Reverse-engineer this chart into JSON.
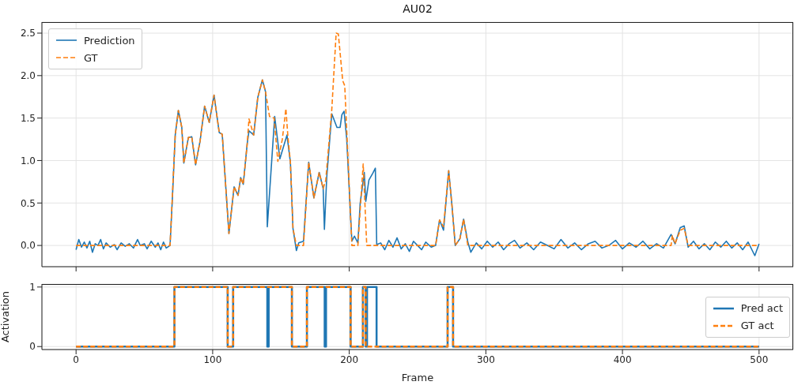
{
  "chart_data": [
    {
      "type": "line",
      "title": "AU02",
      "xlim": [
        -25,
        525
      ],
      "xticks": [
        0,
        100,
        200,
        300,
        400,
        500
      ],
      "ylim": [
        -0.25,
        2.63
      ],
      "yticks": [
        {
          "value": 0,
          "label": "0.0"
        },
        0.5,
        {
          "value": 1,
          "label": "1.0"
        },
        1.5,
        {
          "value": 2,
          "label": "2.0"
        },
        2.5
      ],
      "grid": true,
      "legend": "top left",
      "tick_labels": "y",
      "series": [
        {
          "name": "Prediction",
          "color": "#1f77b4",
          "line_style": "solid",
          "x": [
            0,
            2,
            4,
            6,
            8,
            10,
            12,
            14,
            16,
            18,
            20,
            22,
            25,
            28,
            30,
            33,
            36,
            39,
            42,
            45,
            47,
            50,
            52,
            55,
            58,
            60,
            62,
            64,
            66,
            68.8,
            70.5,
            72.6,
            74.9,
            77.4,
            78.9,
            82.2,
            84.7,
            87.5,
            90.8,
            94.1,
            97.5,
            101,
            104.8,
            107,
            111.9,
            115.7,
            118.6,
            120.5,
            122.4,
            125.3,
            126.6,
            130,
            133,
            136.4,
            138.7,
            140,
            145.4,
            149.2,
            154.4,
            156.9,
            158.8,
            161.3,
            163,
            166.5,
            170.3,
            174.1,
            178,
            180.9,
            181.8,
            183.5,
            187.2,
            191,
            193.3,
            194.6,
            196.2,
            198.1,
            201.9,
            203.8,
            206.3,
            208,
            211,
            212.1,
            214.4,
            217.2,
            219.1,
            220.1,
            223,
            226,
            229,
            232,
            235,
            238,
            241,
            244,
            247,
            250,
            253,
            256,
            260,
            263.2,
            266.1,
            269,
            272.8,
            275.3,
            277.6,
            281,
            283.7,
            286.8,
            289,
            293,
            297,
            301,
            305,
            309,
            313,
            317,
            321,
            325,
            330,
            335,
            340,
            345,
            350,
            355,
            360,
            365,
            370,
            375,
            380,
            385,
            390,
            395,
            400,
            405,
            410,
            415,
            420,
            425,
            430,
            435.6,
            438.5,
            442.3,
            445.2,
            448.1,
            452,
            456,
            460,
            464,
            468,
            472,
            476,
            480,
            484,
            488,
            492,
            496.9,
            500
          ],
          "values": [
            -0.05,
            0.07,
            -0.02,
            0.04,
            -0.03,
            0.05,
            -0.08,
            0.02,
            0.0,
            0.07,
            -0.04,
            0.03,
            -0.02,
            0.01,
            -0.05,
            0.03,
            -0.01,
            0.02,
            -0.03,
            0.07,
            0.0,
            0.02,
            -0.04,
            0.05,
            -0.02,
            0.03,
            -0.05,
            0.04,
            -0.03,
            0.0,
            0.55,
            1.3,
            1.59,
            1.39,
            0.97,
            1.27,
            1.28,
            0.95,
            1.23,
            1.64,
            1.45,
            1.77,
            1.33,
            1.31,
            0.14,
            0.69,
            0.59,
            0.8,
            0.72,
            1.2,
            1.35,
            1.3,
            1.74,
            1.95,
            1.81,
            0.22,
            1.52,
            1.02,
            1.3,
            0.98,
            0.2,
            -0.06,
            0.03,
            0.05,
            0.98,
            0.56,
            0.86,
            0.67,
            0.19,
            0.8,
            1.55,
            1.39,
            1.39,
            1.54,
            1.58,
            1.26,
            0.05,
            0.11,
            0.03,
            0.5,
            0.86,
            0.52,
            0.77,
            0.85,
            0.91,
            0.01,
            0.03,
            -0.05,
            0.06,
            -0.02,
            0.09,
            -0.04,
            0.02,
            -0.07,
            0.05,
            0.0,
            -0.05,
            0.04,
            -0.02,
            0.0,
            0.3,
            0.18,
            0.88,
            0.45,
            0.0,
            0.08,
            0.31,
            0.04,
            -0.08,
            0.03,
            -0.04,
            0.05,
            -0.02,
            0.04,
            -0.05,
            0.02,
            0.06,
            -0.03,
            0.03,
            -0.05,
            0.04,
            0.0,
            -0.04,
            0.07,
            -0.03,
            0.03,
            -0.05,
            0.02,
            0.05,
            -0.03,
            0.0,
            0.06,
            -0.04,
            0.03,
            -0.02,
            0.05,
            -0.04,
            0.02,
            -0.03,
            0.13,
            0.02,
            0.21,
            0.23,
            -0.02,
            0.05,
            -0.04,
            0.02,
            -0.05,
            0.04,
            -0.02,
            0.05,
            -0.03,
            0.03,
            -0.05,
            0.04,
            -0.12,
            0.02
          ]
        },
        {
          "name": "GT",
          "color": "#ff7f0e",
          "line_style": "dashed",
          "x": [
            0,
            68.8,
            72.6,
            74.9,
            77.4,
            78.9,
            82.2,
            84.7,
            87.5,
            90.8,
            94.1,
            97.5,
            101,
            104.8,
            107,
            111.9,
            115.7,
            118.6,
            120.5,
            122.4,
            125.3,
            126.6,
            130,
            133,
            136.4,
            138.7,
            141.6,
            145,
            147.7,
            151,
            153.6,
            155,
            156.9,
            158.8,
            161.3,
            166.5,
            170.3,
            174.1,
            178,
            180.9,
            182.8,
            187.2,
            190.4,
            192,
            195.2,
            196.7,
            201.9,
            206.3,
            210.2,
            212.8,
            263.2,
            266.1,
            269,
            272.8,
            275.3,
            277.6,
            281,
            283.7,
            286.8,
            435.6,
            436.5,
            438.5,
            442.3,
            445.2,
            448.1,
            500
          ],
          "values": [
            0,
            0,
            1.3,
            1.59,
            1.39,
            0.97,
            1.27,
            1.28,
            0.95,
            1.23,
            1.64,
            1.45,
            1.77,
            1.33,
            1.31,
            0.14,
            0.69,
            0.59,
            0.8,
            0.72,
            1.2,
            1.49,
            1.3,
            1.74,
            1.95,
            1.81,
            1.52,
            1.5,
            0.99,
            1.25,
            1.61,
            1.3,
            0.98,
            0.2,
            0,
            0,
            0.98,
            0.56,
            0.86,
            0.67,
            0.77,
            1.6,
            2.5,
            2.49,
            1.94,
            1.88,
            0,
            0,
            0.96,
            0,
            0,
            0.3,
            0.22,
            0.88,
            0.45,
            0,
            0.08,
            0.31,
            0,
            0,
            0.12,
            0.02,
            0.18,
            0.2,
            0,
            0
          ]
        }
      ]
    },
    {
      "type": "step",
      "xlabel": "Frame",
      "ylabel": "Activation",
      "xlim": [
        -25,
        525
      ],
      "xticks": [
        0,
        100,
        200,
        300,
        400,
        500
      ],
      "ylim": [
        -0.05,
        1.05
      ],
      "yticks": [
        0,
        1
      ],
      "grid": true,
      "legend": "right",
      "series": [
        {
          "name": "Pred act",
          "color": "#1f77b4",
          "line_style": "solid",
          "x": [
            0,
            72,
            111,
            115,
            140,
            141,
            158,
            169,
            182,
            183,
            201,
            210,
            212,
            213,
            220,
            272,
            276,
            500
          ],
          "values": [
            0,
            1,
            0,
            1,
            0,
            1,
            0,
            1,
            0,
            1,
            0,
            1,
            0,
            1,
            0,
            1,
            0,
            0
          ]
        },
        {
          "name": "GT act",
          "color": "#ff7f0e",
          "line_style": "dashed",
          "x": [
            0,
            72,
            111,
            115,
            158,
            169,
            201,
            210,
            212,
            272,
            276,
            500
          ],
          "values": [
            0,
            1,
            0,
            1,
            0,
            1,
            0,
            1,
            0,
            1,
            0,
            0
          ]
        }
      ]
    }
  ]
}
